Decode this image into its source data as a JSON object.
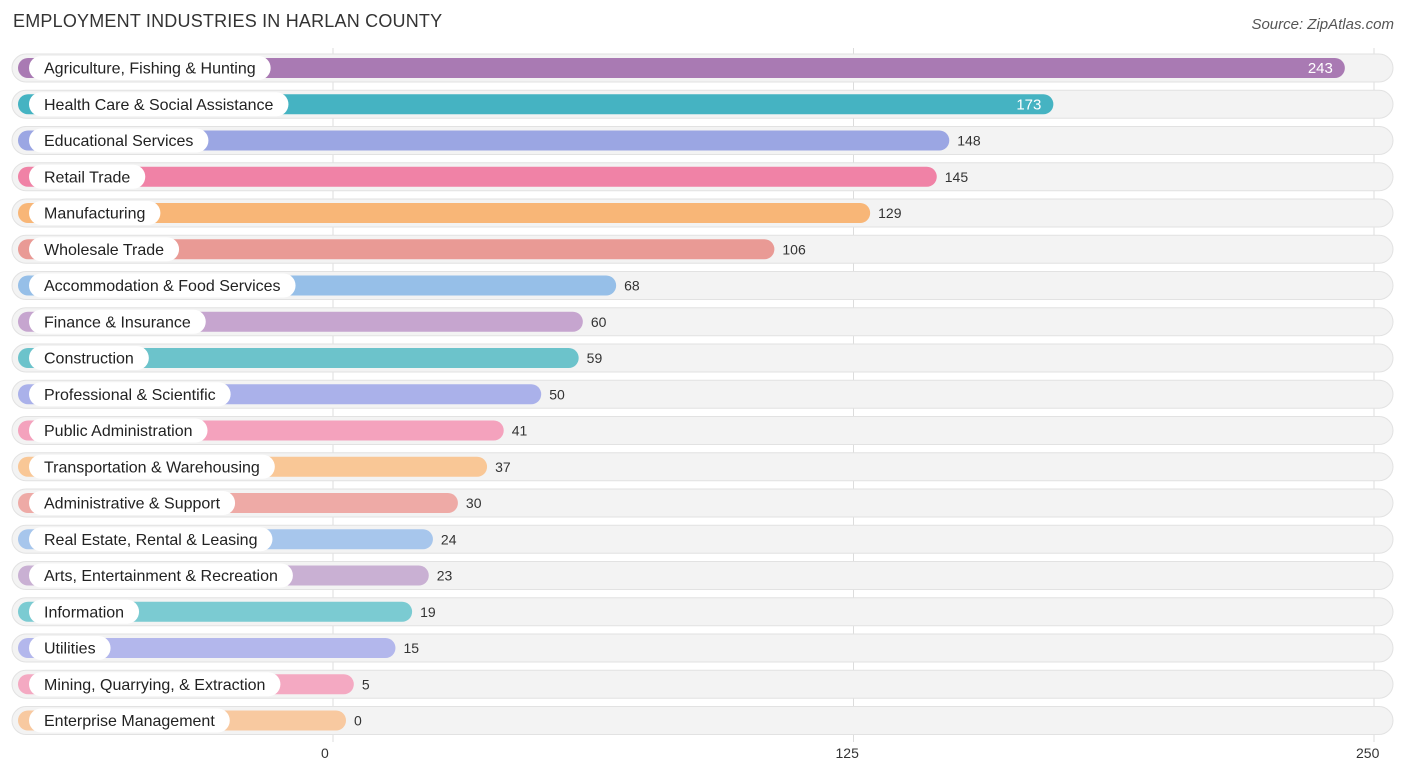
{
  "header": {
    "title": "EMPLOYMENT INDUSTRIES IN HARLAN COUNTY",
    "source": "Source: ZipAtlas.com"
  },
  "chart_data": {
    "type": "bar",
    "orientation": "horizontal",
    "title": "EMPLOYMENT INDUSTRIES IN HARLAN COUNTY",
    "xlabel": "",
    "ylabel": "",
    "xlim": [
      0,
      250
    ],
    "ticks": [
      0,
      125,
      250
    ],
    "tick_labels": [
      "0",
      "125",
      "250"
    ],
    "grid": true,
    "categories": [
      "Agriculture, Fishing & Hunting",
      "Health Care & Social Assistance",
      "Educational Services",
      "Retail Trade",
      "Manufacturing",
      "Wholesale Trade",
      "Accommodation & Food Services",
      "Finance & Insurance",
      "Construction",
      "Professional & Scientific",
      "Public Administration",
      "Transportation & Warehousing",
      "Administrative & Support",
      "Real Estate, Rental & Leasing",
      "Arts, Entertainment & Recreation",
      "Information",
      "Utilities",
      "Mining, Quarrying, & Extraction",
      "Enterprise Management"
    ],
    "values": [
      243,
      173,
      148,
      145,
      129,
      106,
      68,
      60,
      59,
      50,
      41,
      37,
      30,
      24,
      23,
      19,
      15,
      5,
      0
    ],
    "colors": [
      "#a97ab3",
      "#45b3c2",
      "#9ba6e3",
      "#f082a6",
      "#f8b677",
      "#e99a95",
      "#96bfe8",
      "#c6a5cf",
      "#6cc3cb",
      "#aab1ea",
      "#f4a2bd",
      "#f9c796",
      "#eeaaa6",
      "#a7c6ec",
      "#c9b0d3",
      "#7bcbd2",
      "#b3b7ec",
      "#f4a9c2",
      "#f8c9a0"
    ]
  }
}
